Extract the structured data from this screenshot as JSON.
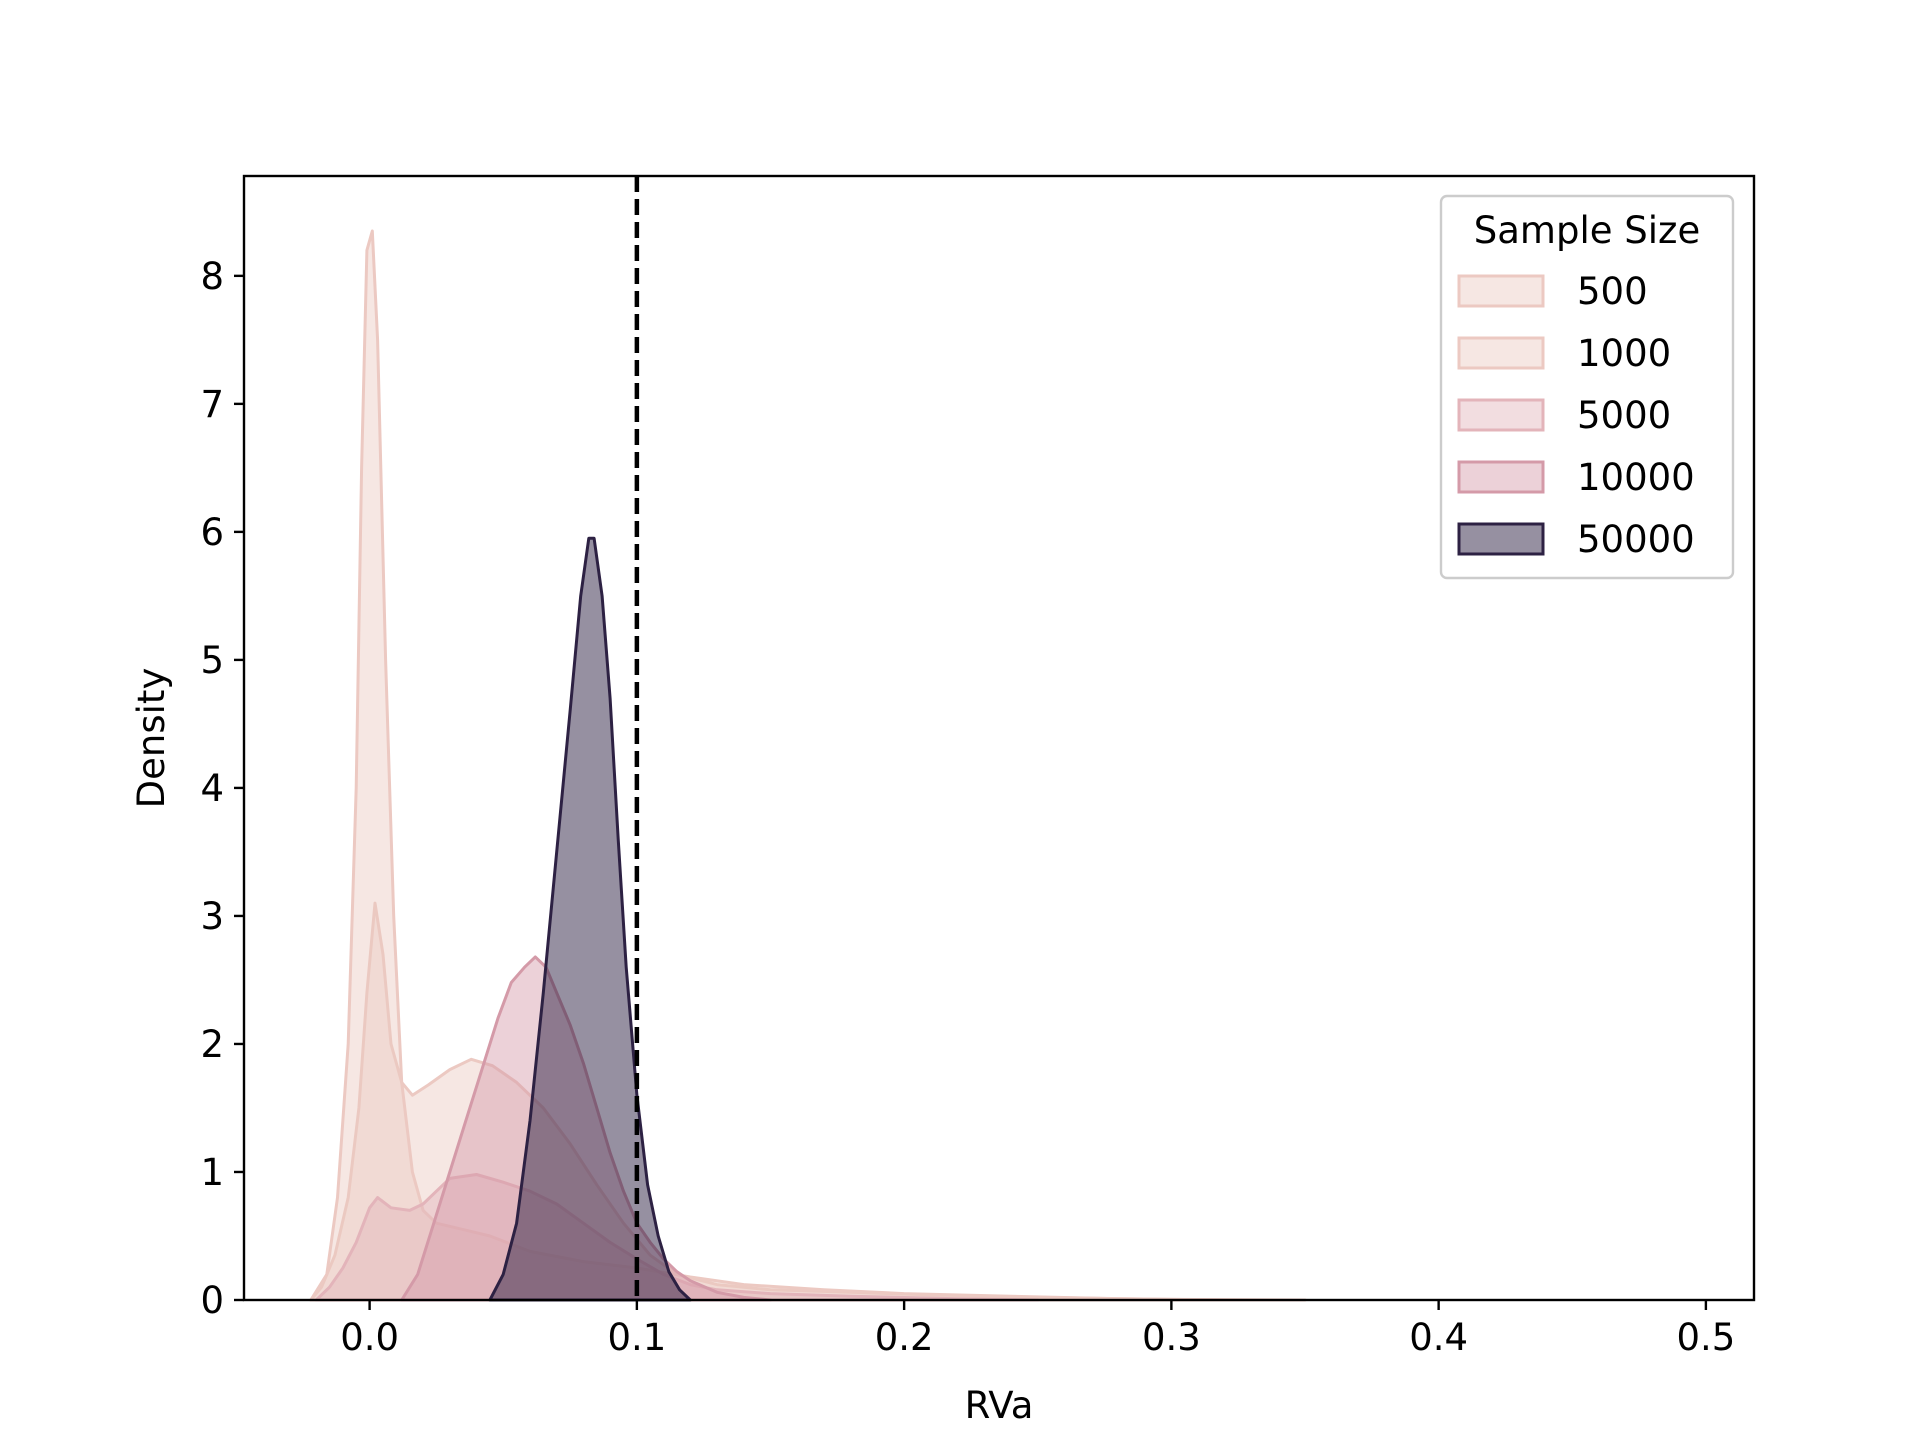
{
  "chart_data": {
    "type": "area",
    "title": "",
    "xlabel": "RVa",
    "ylabel": "Density",
    "xlim": [
      -0.047,
      0.518
    ],
    "ylim": [
      0,
      8.78
    ],
    "x_ticks": [
      "0.0",
      "0.1",
      "0.2",
      "0.3",
      "0.4",
      "0.5"
    ],
    "x_tick_values": [
      0.0,
      0.1,
      0.2,
      0.3,
      0.4,
      0.5
    ],
    "y_ticks": [
      "0",
      "1",
      "2",
      "3",
      "4",
      "5",
      "6",
      "7",
      "8"
    ],
    "y_tick_values": [
      0,
      1,
      2,
      3,
      4,
      5,
      6,
      7,
      8
    ],
    "grid": false,
    "legend": {
      "title": "Sample Size",
      "placement": "top-right"
    },
    "reference_line": {
      "x": 0.1,
      "style": "dashed",
      "color": "#000000"
    },
    "series": [
      {
        "name": "500",
        "fill": "#ecc9c2",
        "stroke": "#ecc9c2",
        "opacity": 0.45,
        "points": [
          [
            -0.022,
            0
          ],
          [
            -0.018,
            0.1
          ],
          [
            -0.013,
            0.35
          ],
          [
            -0.008,
            0.8
          ],
          [
            -0.004,
            1.5
          ],
          [
            -0.001,
            2.4
          ],
          [
            0.002,
            3.1
          ],
          [
            0.005,
            2.7
          ],
          [
            0.008,
            2.0
          ],
          [
            0.012,
            1.7
          ],
          [
            0.016,
            1.6
          ],
          [
            0.022,
            1.68
          ],
          [
            0.03,
            1.8
          ],
          [
            0.038,
            1.88
          ],
          [
            0.046,
            1.83
          ],
          [
            0.055,
            1.7
          ],
          [
            0.065,
            1.5
          ],
          [
            0.075,
            1.22
          ],
          [
            0.085,
            0.9
          ],
          [
            0.095,
            0.6
          ],
          [
            0.105,
            0.35
          ],
          [
            0.115,
            0.2
          ],
          [
            0.13,
            0.12
          ],
          [
            0.15,
            0.08
          ],
          [
            0.18,
            0.06
          ],
          [
            0.21,
            0.04
          ],
          [
            0.25,
            0.02
          ],
          [
            0.3,
            0.005
          ],
          [
            0.35,
            0
          ]
        ]
      },
      {
        "name": "1000",
        "fill": "#ecc9c2",
        "stroke": "#ecc9c2",
        "opacity": 0.45,
        "points": [
          [
            -0.022,
            0
          ],
          [
            -0.016,
            0.2
          ],
          [
            -0.012,
            0.8
          ],
          [
            -0.008,
            2.0
          ],
          [
            -0.005,
            4.0
          ],
          [
            -0.003,
            6.5
          ],
          [
            -0.001,
            8.2
          ],
          [
            0.001,
            8.35
          ],
          [
            0.003,
            7.5
          ],
          [
            0.006,
            5.0
          ],
          [
            0.009,
            3.0
          ],
          [
            0.012,
            1.7
          ],
          [
            0.016,
            1.0
          ],
          [
            0.02,
            0.7
          ],
          [
            0.025,
            0.6
          ],
          [
            0.035,
            0.55
          ],
          [
            0.045,
            0.5
          ],
          [
            0.06,
            0.38
          ],
          [
            0.08,
            0.3
          ],
          [
            0.1,
            0.25
          ],
          [
            0.12,
            0.18
          ],
          [
            0.14,
            0.12
          ],
          [
            0.17,
            0.08
          ],
          [
            0.2,
            0.05
          ],
          [
            0.24,
            0.03
          ],
          [
            0.28,
            0.01
          ],
          [
            0.32,
            0
          ]
        ]
      },
      {
        "name": "5000",
        "fill": "#e3b4ba",
        "stroke": "#e3b4ba",
        "opacity": 0.45,
        "points": [
          [
            -0.02,
            0
          ],
          [
            -0.015,
            0.1
          ],
          [
            -0.01,
            0.25
          ],
          [
            -0.005,
            0.45
          ],
          [
            0.0,
            0.72
          ],
          [
            0.003,
            0.8
          ],
          [
            0.008,
            0.72
          ],
          [
            0.015,
            0.7
          ],
          [
            0.02,
            0.75
          ],
          [
            0.025,
            0.85
          ],
          [
            0.03,
            0.95
          ],
          [
            0.04,
            0.98
          ],
          [
            0.05,
            0.92
          ],
          [
            0.06,
            0.85
          ],
          [
            0.07,
            0.75
          ],
          [
            0.08,
            0.6
          ],
          [
            0.09,
            0.45
          ],
          [
            0.1,
            0.32
          ],
          [
            0.11,
            0.2
          ],
          [
            0.12,
            0.12
          ],
          [
            0.13,
            0.08
          ],
          [
            0.15,
            0.05
          ],
          [
            0.18,
            0.03
          ],
          [
            0.22,
            0.01
          ],
          [
            0.25,
            0
          ]
        ]
      },
      {
        "name": "10000",
        "fill": "#d49aa8",
        "stroke": "#d49aa8",
        "opacity": 0.45,
        "points": [
          [
            0.012,
            0
          ],
          [
            0.018,
            0.2
          ],
          [
            0.024,
            0.6
          ],
          [
            0.03,
            1.0
          ],
          [
            0.036,
            1.4
          ],
          [
            0.042,
            1.8
          ],
          [
            0.048,
            2.2
          ],
          [
            0.053,
            2.48
          ],
          [
            0.058,
            2.6
          ],
          [
            0.062,
            2.68
          ],
          [
            0.066,
            2.6
          ],
          [
            0.07,
            2.4
          ],
          [
            0.075,
            2.15
          ],
          [
            0.08,
            1.85
          ],
          [
            0.085,
            1.5
          ],
          [
            0.09,
            1.15
          ],
          [
            0.095,
            0.85
          ],
          [
            0.1,
            0.6
          ],
          [
            0.105,
            0.45
          ],
          [
            0.11,
            0.32
          ],
          [
            0.115,
            0.22
          ],
          [
            0.12,
            0.15
          ],
          [
            0.13,
            0.06
          ],
          [
            0.14,
            0.02
          ],
          [
            0.15,
            0
          ]
        ]
      },
      {
        "name": "50000",
        "fill": "#2d2143",
        "stroke": "#2d2143",
        "opacity": 0.5,
        "points": [
          [
            0.045,
            0
          ],
          [
            0.05,
            0.2
          ],
          [
            0.055,
            0.6
          ],
          [
            0.06,
            1.4
          ],
          [
            0.065,
            2.4
          ],
          [
            0.07,
            3.5
          ],
          [
            0.075,
            4.6
          ],
          [
            0.079,
            5.5
          ],
          [
            0.082,
            5.95
          ],
          [
            0.084,
            5.95
          ],
          [
            0.087,
            5.5
          ],
          [
            0.09,
            4.7
          ],
          [
            0.093,
            3.6
          ],
          [
            0.096,
            2.6
          ],
          [
            0.1,
            1.6
          ],
          [
            0.104,
            0.9
          ],
          [
            0.108,
            0.5
          ],
          [
            0.112,
            0.22
          ],
          [
            0.116,
            0.08
          ],
          [
            0.12,
            0
          ]
        ]
      }
    ]
  }
}
